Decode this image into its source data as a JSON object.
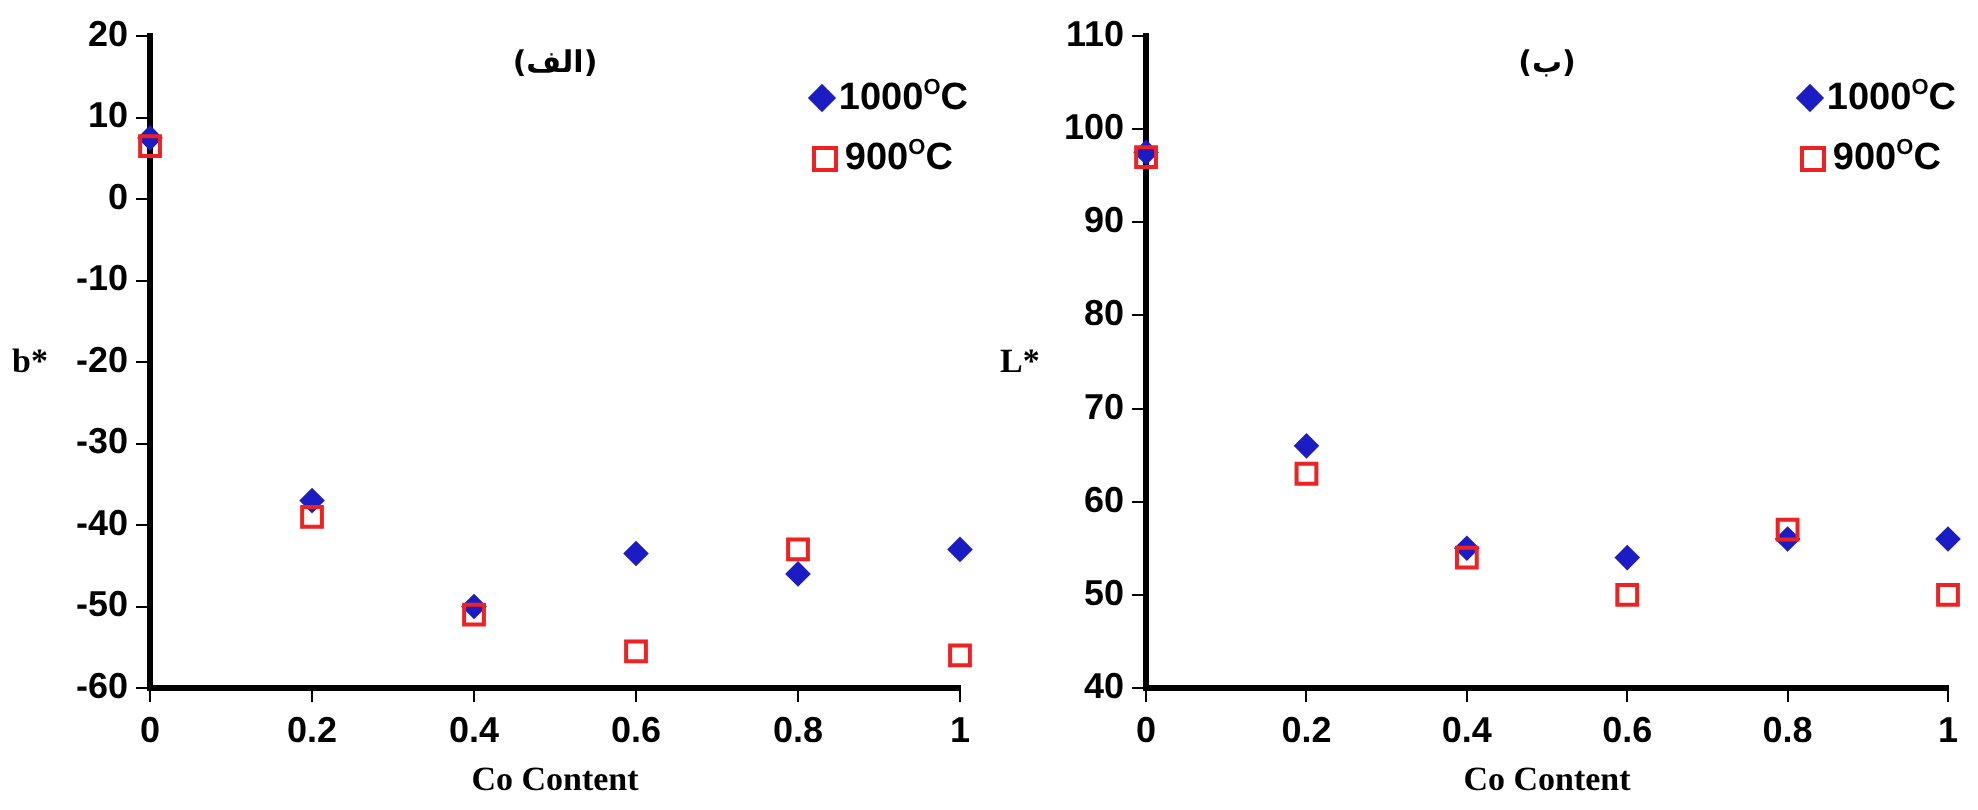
{
  "chart_data": [
    {
      "type": "scatter",
      "title": "(الف)",
      "xlabel": "Co Content",
      "ylabel": "b*",
      "x": [
        0,
        0.2,
        0.4,
        0.6,
        0.8,
        1
      ],
      "series": [
        {
          "name": "1000$^{O}$C",
          "color": "#1c1cc4",
          "marker": "diamond",
          "values": [
            7.5,
            -37,
            -50,
            -43.5,
            -46,
            -43
          ]
        },
        {
          "name": "900$^{O}$C",
          "color": "#ee2222",
          "marker": "square",
          "values": [
            6.5,
            -39,
            -51,
            -55.5,
            -43,
            -56
          ]
        }
      ],
      "xlim": [
        0,
        1
      ],
      "xticks": [
        0,
        0.2,
        0.4,
        0.6,
        0.8,
        1
      ],
      "ylim": [
        -60,
        20
      ],
      "yticks": [
        -60,
        -50,
        -40,
        -30,
        -20,
        -10,
        0,
        10,
        20
      ],
      "grid": false,
      "legend": "top right"
    },
    {
      "type": "scatter",
      "title": "(ب)",
      "xlabel": "Co Content",
      "ylabel": "L*",
      "x": [
        0,
        0.2,
        0.4,
        0.6,
        0.8,
        1
      ],
      "series": [
        {
          "name": "1000$^{O}$C",
          "color": "#1c1cc4",
          "marker": "diamond",
          "values": [
            97.5,
            66,
            55,
            54,
            56,
            56
          ]
        },
        {
          "name": "900$^{O}$C",
          "color": "#ee2222",
          "marker": "square",
          "values": [
            97,
            63,
            54,
            50,
            57,
            50
          ]
        }
      ],
      "xlim": [
        0,
        1
      ],
      "xticks": [
        0,
        0.2,
        0.4,
        0.6,
        0.8,
        1
      ],
      "ylim": [
        40,
        110
      ],
      "yticks": [
        40,
        50,
        60,
        70,
        80,
        90,
        100,
        110
      ],
      "grid": false,
      "legend": "top right"
    }
  ]
}
